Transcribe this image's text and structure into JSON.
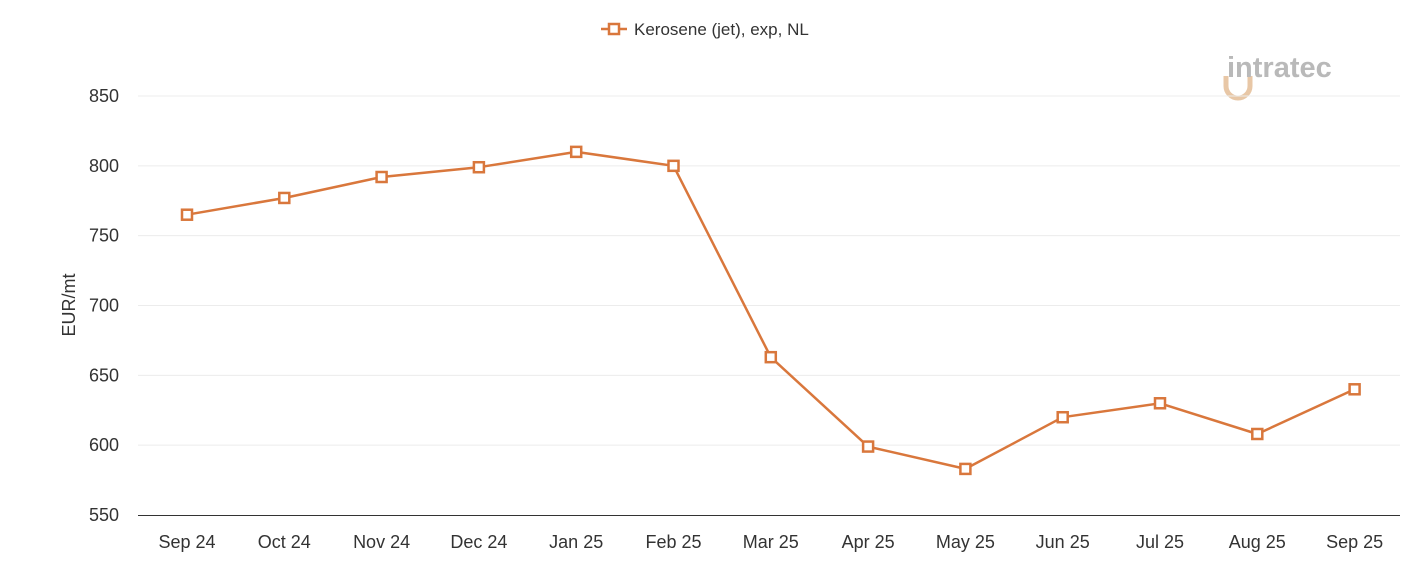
{
  "chart_data": {
    "type": "line",
    "categories": [
      "Sep 24",
      "Oct 24",
      "Nov 24",
      "Dec 24",
      "Jan 25",
      "Feb 25",
      "Mar 25",
      "Apr 25",
      "May 25",
      "Jun 25",
      "Jul 25",
      "Aug 25",
      "Sep 25"
    ],
    "series": [
      {
        "name": "Kerosene (jet), exp, NL",
        "values": [
          765,
          777,
          792,
          799,
          810,
          800,
          663,
          599,
          583,
          620,
          630,
          608,
          640
        ],
        "color": "#d9773c",
        "marker": "square-open"
      }
    ],
    "title": "",
    "xlabel": "",
    "ylabel": "EUR/mt",
    "ylim": [
      550,
      850
    ],
    "yticks": [
      550,
      600,
      650,
      700,
      750,
      800,
      850
    ],
    "grid": true,
    "legend_position": "top-center"
  },
  "watermark": {
    "text": "intratec",
    "colors": {
      "text": "#b9b9b9",
      "accent": "#e8c7a6"
    }
  }
}
